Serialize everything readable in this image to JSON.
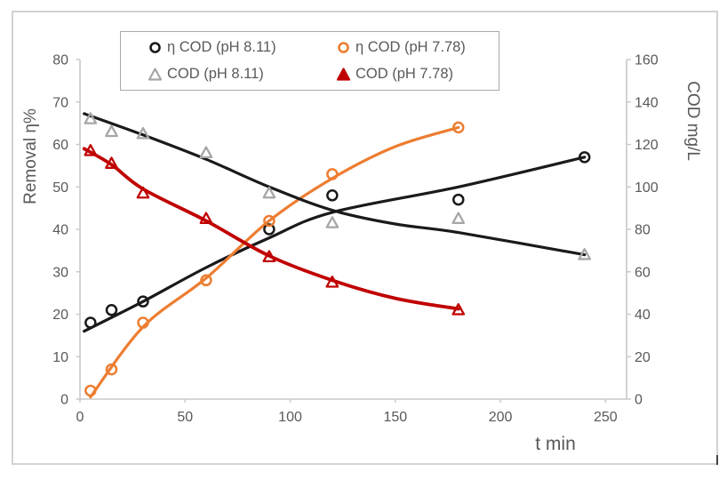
{
  "colors": {
    "background": "#ffffff",
    "chart_border": "#d2d2d2",
    "axis_line": "#c8c8c8",
    "tick_text": "#595959",
    "legend_border": "#a9a9a9",
    "black_series": "#1a1a1a",
    "orange_series": "#ED7D31",
    "gray_series": "#A6A6A6",
    "red_series": "#C00000"
  },
  "legend": {
    "items": [
      {
        "label": "η COD (pH 8.11)",
        "marker": "circle",
        "color": "#1a1a1a",
        "filled": false
      },
      {
        "label": "η COD (pH 7.78)",
        "marker": "circle",
        "color": "#ED7D31",
        "filled": false
      },
      {
        "label": "COD (pH 8.11)",
        "marker": "triangle",
        "color": "#A6A6A6",
        "filled": false
      },
      {
        "label": "COD (pH 7.78)",
        "marker": "triangle",
        "color": "#C00000",
        "filled": true
      }
    ]
  },
  "chart_data": {
    "type": "scatter",
    "subtype": "scatter-with-smooth-trend-lines",
    "title": "",
    "xlabel": "t min",
    "ylabel_left": "Removal η%",
    "ylabel_right": "COD mg/L",
    "grid": false,
    "legend_position": "top-inside-border",
    "axes": {
      "x": {
        "title": "t min",
        "min": 0,
        "max": 260,
        "ticks": [
          0,
          50,
          100,
          150,
          200,
          250
        ]
      },
      "left": {
        "title": "Removal η%",
        "min": 0,
        "max": 80,
        "ticks": [
          0,
          10,
          20,
          30,
          40,
          50,
          60,
          70,
          80
        ]
      },
      "right": {
        "title": "COD mg/L",
        "min": 0,
        "max": 160,
        "ticks": [
          0,
          20,
          40,
          60,
          80,
          100,
          120,
          140,
          160
        ]
      }
    },
    "series": [
      {
        "name": "η COD (pH 8.11)",
        "axis": "left",
        "marker": "circle",
        "color": "#1a1a1a",
        "line_color": "#1a1a1a",
        "line_width": 3.2,
        "units": "%",
        "points": [
          [
            5,
            18
          ],
          [
            15,
            21
          ],
          [
            30,
            23
          ],
          [
            90,
            40
          ],
          [
            120,
            48
          ],
          [
            180,
            47
          ],
          [
            240,
            57
          ]
        ],
        "trend": [
          [
            2,
            16
          ],
          [
            30,
            23
          ],
          [
            60,
            31
          ],
          [
            90,
            38
          ],
          [
            120,
            44
          ],
          [
            180,
            50
          ],
          [
            240,
            57
          ]
        ]
      },
      {
        "name": "η COD (pH 7.78)",
        "axis": "left",
        "marker": "circle",
        "color": "#ED7D31",
        "line_color": "#ED7D31",
        "line_width": 3.2,
        "units": "%",
        "points": [
          [
            5,
            2
          ],
          [
            15,
            7
          ],
          [
            30,
            18
          ],
          [
            60,
            28
          ],
          [
            90,
            42
          ],
          [
            120,
            53
          ],
          [
            180,
            64
          ]
        ],
        "trend": [
          [
            5,
            0.5
          ],
          [
            30,
            17
          ],
          [
            60,
            28.5
          ],
          [
            90,
            42
          ],
          [
            120,
            52
          ],
          [
            150,
            59.5
          ],
          [
            180,
            64
          ]
        ]
      },
      {
        "name": "COD (pH 8.11)",
        "axis": "right",
        "marker": "triangle",
        "color": "#A6A6A6",
        "line_color": "#1a1a1a",
        "line_width": 3.2,
        "units": "mg/L",
        "points": [
          [
            5,
            132
          ],
          [
            15,
            126
          ],
          [
            30,
            125
          ],
          [
            60,
            116
          ],
          [
            90,
            97
          ],
          [
            120,
            83
          ],
          [
            180,
            85
          ],
          [
            240,
            68
          ]
        ],
        "trend": [
          [
            2,
            134.5
          ],
          [
            30,
            124.5
          ],
          [
            60,
            113
          ],
          [
            90,
            100
          ],
          [
            120,
            89
          ],
          [
            150,
            82.5
          ],
          [
            180,
            78.5
          ],
          [
            240,
            68
          ]
        ]
      },
      {
        "name": "COD (pH 7.78)",
        "axis": "right",
        "marker": "triangle",
        "color": "#C00000",
        "line_color": "#C00000",
        "line_width": 3.8,
        "units": "mg/L",
        "points": [
          [
            5,
            117
          ],
          [
            15,
            111
          ],
          [
            30,
            97
          ],
          [
            60,
            85
          ],
          [
            90,
            67
          ],
          [
            120,
            55
          ],
          [
            180,
            42
          ]
        ],
        "trend": [
          [
            2,
            118
          ],
          [
            15,
            110.5
          ],
          [
            30,
            99
          ],
          [
            60,
            84
          ],
          [
            90,
            67.5
          ],
          [
            120,
            56
          ],
          [
            150,
            47.5
          ],
          [
            180,
            42.5
          ]
        ]
      }
    ]
  }
}
